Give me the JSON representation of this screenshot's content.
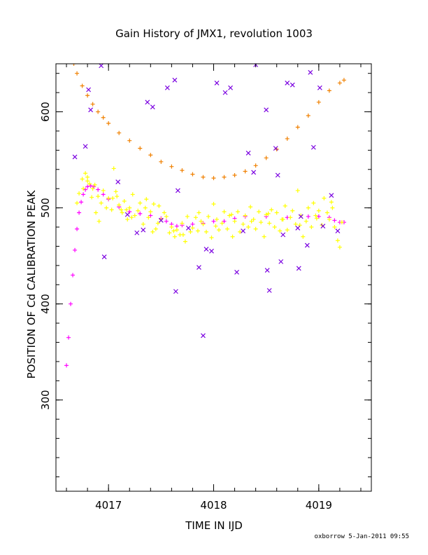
{
  "chart_data": {
    "type": "scatter",
    "title": "Gain History of JMX1, revolution 1003",
    "xlabel": "TIME IN IJD",
    "ylabel": "POSITION OF Cd CALIBRATION PEAK",
    "xlim": [
      4016.5,
      4019.5
    ],
    "ylim": [
      205,
      650
    ],
    "x_ticks": [
      4017,
      4018,
      4019
    ],
    "x_tick_labels": [
      "4017",
      "4018",
      "4019"
    ],
    "y_ticks": [
      300,
      400,
      500,
      600
    ],
    "y_tick_labels": [
      "300",
      "400",
      "500",
      "600"
    ],
    "x_minor_step": 0.2,
    "y_minor_step": 20,
    "grid": false,
    "legend": "none",
    "footer": "oxborrow  5-Jan-2011 09:55",
    "colors": {
      "orange_curve": "#f08000",
      "magenta_curve": "#ff00ff",
      "yellow_scatter": "#ffff00",
      "purple_outliers": "#7a00e0"
    },
    "series": [
      {
        "key": "orange_curve",
        "marker": "plus",
        "x": [
          4016.67,
          4016.7,
          4016.75,
          4016.8,
          4016.85,
          4016.9,
          4016.95,
          4017.0,
          4017.1,
          4017.2,
          4017.3,
          4017.4,
          4017.5,
          4017.6,
          4017.7,
          4017.8,
          4017.9,
          4018.0,
          4018.1,
          4018.2,
          4018.3,
          4018.4,
          4018.5,
          4018.6,
          4018.7,
          4018.8,
          4018.9,
          4019.0,
          4019.1,
          4019.2,
          4019.24
        ],
        "y": [
          650,
          640,
          627,
          617,
          608,
          600,
          594,
          588,
          578,
          570,
          562,
          555,
          548,
          543,
          539,
          535,
          532,
          531,
          532,
          534,
          538,
          544,
          552,
          561,
          572,
          584,
          596,
          610,
          622,
          630,
          633
        ]
      },
      {
        "key": "magenta_curve",
        "marker": "plus",
        "x": [
          4016.6,
          4016.62,
          4016.64,
          4016.66,
          4016.68,
          4016.7,
          4016.72,
          4016.74,
          4016.76,
          4016.78,
          4016.8,
          4016.83,
          4016.86,
          4016.9,
          4016.95,
          4017.0,
          4017.1,
          4017.2,
          4017.3,
          4017.4,
          4017.5,
          4017.55,
          4017.6,
          4017.65,
          4017.7,
          4017.8,
          4017.9,
          4018.0,
          4018.1,
          4018.2,
          4018.3,
          4018.5,
          4018.7,
          4018.9,
          4019.0,
          4019.1,
          4019.15,
          4019.2,
          4019.24
        ],
        "y": [
          336,
          365,
          400,
          430,
          456,
          478,
          495,
          506,
          514,
          519,
          522,
          523,
          522,
          519,
          514,
          509,
          501,
          496,
          494,
          492,
          489,
          486,
          483,
          481,
          482,
          483,
          484,
          486,
          486,
          489,
          491,
          491,
          490,
          491,
          491,
          490,
          487,
          485,
          485
        ]
      },
      {
        "key": "yellow_scatter",
        "marker": "plus",
        "x": [
          4016.7,
          4016.72,
          4016.75,
          4016.78,
          4016.8,
          4016.82,
          4016.85,
          4016.88,
          4016.9,
          4016.93,
          4016.95,
          4016.98,
          4017.0,
          4017.03,
          4017.05,
          4017.08,
          4017.1,
          4017.13,
          4017.15,
          4017.18,
          4017.2,
          4017.23,
          4017.25,
          4017.28,
          4017.3,
          4017.33,
          4017.35,
          4017.38,
          4017.4,
          4017.43,
          4017.45,
          4017.48,
          4017.5,
          4017.53,
          4017.55,
          4017.58,
          4017.6,
          4017.63,
          4017.65,
          4017.68,
          4017.7,
          4017.73,
          4017.75,
          4017.78,
          4017.8,
          4017.83,
          4017.85,
          4017.88,
          4017.9,
          4017.93,
          4017.95,
          4017.98,
          4018.0,
          4018.03,
          4018.05,
          4018.08,
          4018.1,
          4018.13,
          4018.15,
          4018.18,
          4018.2,
          4018.23,
          4018.25,
          4018.28,
          4018.3,
          4018.33,
          4018.35,
          4018.38,
          4018.4,
          4018.43,
          4018.45,
          4018.48,
          4018.5,
          4018.53,
          4018.55,
          4018.58,
          4018.6,
          4018.63,
          4018.65,
          4018.68,
          4018.7,
          4018.73,
          4018.75,
          4018.78,
          4018.8,
          4018.83,
          4018.85,
          4018.88,
          4018.9,
          4018.93,
          4018.95,
          4018.98,
          4019.0,
          4019.03,
          4019.05,
          4019.08,
          4019.1,
          4019.13,
          4019.15,
          4019.18,
          4019.2,
          4019.22,
          4016.76,
          4016.84,
          4016.91,
          4017.07,
          4017.12,
          4017.22,
          4017.36,
          4017.47,
          4017.62,
          4017.71,
          4017.86,
          4018.02,
          4018.17,
          4018.36,
          4018.52,
          4018.66,
          4018.82,
          4018.97,
          4019.12,
          4016.8,
          4016.87,
          4017.04,
          4017.17,
          4017.42
        ],
        "y": [
          505,
          515,
          530,
          536,
          528,
          525,
          520,
          495,
          512,
          505,
          518,
          500,
          510,
          498,
          541,
          512,
          503,
          495,
          507,
          488,
          500,
          514,
          492,
          497,
          505,
          483,
          500,
          490,
          496,
          504,
          478,
          502,
          488,
          495,
          491,
          474,
          480,
          470,
          477,
          472,
          484,
          465,
          491,
          475,
          479,
          490,
          476,
          486,
          483,
          475,
          491,
          469,
          504,
          488,
          477,
          484,
          496,
          478,
          492,
          470,
          486,
          496,
          475,
          483,
          492,
          480,
          501,
          488,
          478,
          496,
          485,
          470,
          493,
          484,
          498,
          480,
          495,
          476,
          488,
          502,
          477,
          490,
          497,
          483,
          518,
          492,
          470,
          486,
          500,
          480,
          505,
          489,
          497,
          482,
          510,
          495,
          488,
          500,
          480,
          466,
          459,
          485,
          520,
          511,
          486,
          517,
          498,
          490,
          509,
          484,
          476,
          472,
          495,
          481,
          493,
          486,
          494,
          488,
          482,
          492,
          506,
          532,
          524,
          510,
          498,
          475
        ]
      },
      {
        "key": "purple_outliers",
        "marker": "x",
        "x": [
          4016.68,
          4016.78,
          4016.81,
          4016.83,
          4016.93,
          4016.96,
          4017.09,
          4017.18,
          4017.27,
          4017.33,
          4017.37,
          4017.42,
          4017.5,
          4017.56,
          4017.63,
          4017.64,
          4017.66,
          4017.76,
          4017.86,
          4017.9,
          4017.93,
          4017.98,
          4018.03,
          4018.11,
          4018.16,
          4018.22,
          4018.28,
          4018.33,
          4018.38,
          4018.4,
          4018.5,
          4018.51,
          4018.53,
          4018.59,
          4018.61,
          4018.64,
          4018.66,
          4018.7,
          4018.75,
          4018.8,
          4018.81,
          4018.83,
          4018.89,
          4018.92,
          4018.95,
          4019.01,
          4019.04,
          4019.12,
          4019.18
        ],
        "y": [
          553,
          564,
          623,
          602,
          648,
          449,
          527,
          493,
          474,
          477,
          610,
          605,
          487,
          625,
          633,
          413,
          518,
          479,
          438,
          367,
          457,
          455,
          630,
          620,
          625,
          433,
          476,
          557,
          537,
          649,
          602,
          435,
          414,
          562,
          534,
          444,
          472,
          630,
          628,
          479,
          437,
          491,
          461,
          641,
          563,
          625,
          481,
          513,
          476
        ]
      }
    ]
  }
}
